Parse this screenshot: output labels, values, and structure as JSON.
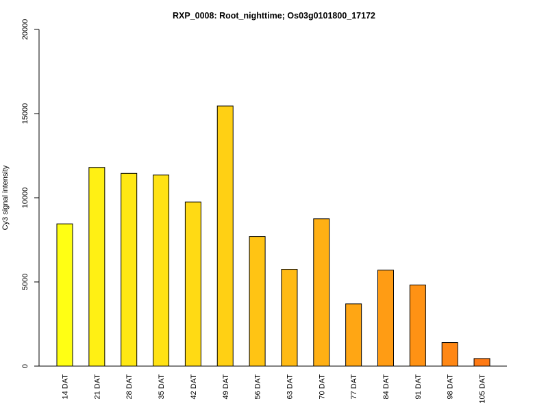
{
  "chart_data": {
    "type": "bar",
    "title": "RXP_0008: Root_nighttime; Os03g0101800_17172",
    "xlabel": "",
    "ylabel": "Cy3 signal intensity",
    "ylim": [
      0,
      20000
    ],
    "yticks": [
      0,
      5000,
      10000,
      15000,
      20000
    ],
    "ytick_labels": [
      "0",
      "5000",
      "10000",
      "15000",
      "20000"
    ],
    "categories": [
      "14 DAT",
      "21 DAT",
      "28 DAT",
      "35 DAT",
      "42 DAT",
      "49 DAT",
      "56 DAT",
      "63 DAT",
      "70 DAT",
      "77 DAT",
      "84 DAT",
      "91 DAT",
      "98 DAT",
      "105 DAT"
    ],
    "values": [
      8450,
      11800,
      11450,
      11350,
      9750,
      15450,
      7700,
      5750,
      8750,
      3700,
      5700,
      4820,
      1400,
      450
    ],
    "colors": [
      "#FFFF14",
      "#FFF014",
      "#FFE814",
      "#FFE214",
      "#FFDA14",
      "#FFD014",
      "#FFC414",
      "#FFBA14",
      "#FFB014",
      "#FFA614",
      "#FF9C14",
      "#FF9214",
      "#FF8714",
      "#FF7A14"
    ],
    "grid": false,
    "legend": "none"
  }
}
